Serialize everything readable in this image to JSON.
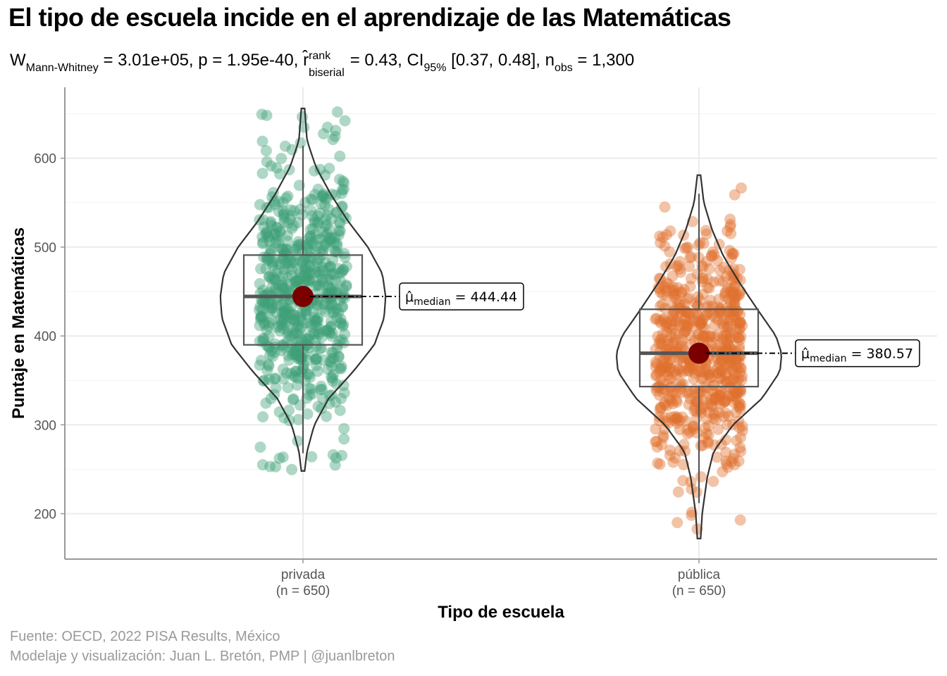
{
  "title": "El tipo de escuela incide en el aprendizaje de las Matemáticas",
  "subtitle": {
    "w_label": "W",
    "w_sub": "Mann-Whitney",
    "w_value": " = 3.01e+05, p  = 1.95e-40, ",
    "r_symbol": "r̂",
    "r_sup": "rank",
    "r_sub": "biserial",
    "r_value": " = 0.43, CI",
    "ci_sub": "95%",
    "ci_value": " [0.37, 0.48], n",
    "n_sub": "obs",
    "n_value": " = 1,300"
  },
  "caption_source": "Fuente: OECD, 2022 PISA Results, México",
  "caption_credit": "Modelaje y visualización: Juan L. Bretón, PMP | @juanlbreton",
  "chart_data": {
    "type": "violin-box-scatter",
    "xlabel": "Tipo de escuela",
    "ylabel": "Puntaje en Matemáticas",
    "ylim": [
      150,
      670
    ],
    "yticks": [
      200,
      300,
      400,
      500,
      600
    ],
    "grid": true,
    "categories": [
      {
        "name": "privada",
        "n_label": "(n = 650)",
        "color": "#3d9f78",
        "median": 444.44,
        "median_label_symbol": "μ̂",
        "median_label_sub": "median",
        "median_label_value": " = 444.44",
        "q1": 390,
        "q3": 491,
        "whisker_low": 268,
        "whisker_high": 614,
        "min": 248,
        "max": 656,
        "violin_profile": [
          [
            248,
            0.02
          ],
          [
            270,
            0.05
          ],
          [
            300,
            0.14
          ],
          [
            330,
            0.32
          ],
          [
            360,
            0.62
          ],
          [
            390,
            0.88
          ],
          [
            420,
            1.0
          ],
          [
            444,
            1.02
          ],
          [
            470,
            0.98
          ],
          [
            500,
            0.8
          ],
          [
            530,
            0.55
          ],
          [
            560,
            0.34
          ],
          [
            590,
            0.16
          ],
          [
            620,
            0.05
          ],
          [
            656,
            0.02
          ]
        ]
      },
      {
        "name": "pública",
        "n_label": "(n = 650)",
        "color": "#df6f2e",
        "median": 380.57,
        "median_label_symbol": "μ̂",
        "median_label_sub": "median",
        "median_label_value": " = 380.57",
        "q1": 343,
        "q3": 430,
        "whisker_low": 212,
        "whisker_high": 560,
        "min": 172,
        "max": 581,
        "violin_profile": [
          [
            172,
            0.02
          ],
          [
            200,
            0.04
          ],
          [
            240,
            0.1
          ],
          [
            270,
            0.18
          ],
          [
            300,
            0.42
          ],
          [
            330,
            0.78
          ],
          [
            360,
            1.0
          ],
          [
            380,
            1.02
          ],
          [
            400,
            0.95
          ],
          [
            430,
            0.72
          ],
          [
            460,
            0.5
          ],
          [
            490,
            0.3
          ],
          [
            520,
            0.16
          ],
          [
            550,
            0.06
          ],
          [
            581,
            0.02
          ]
        ]
      }
    ]
  }
}
